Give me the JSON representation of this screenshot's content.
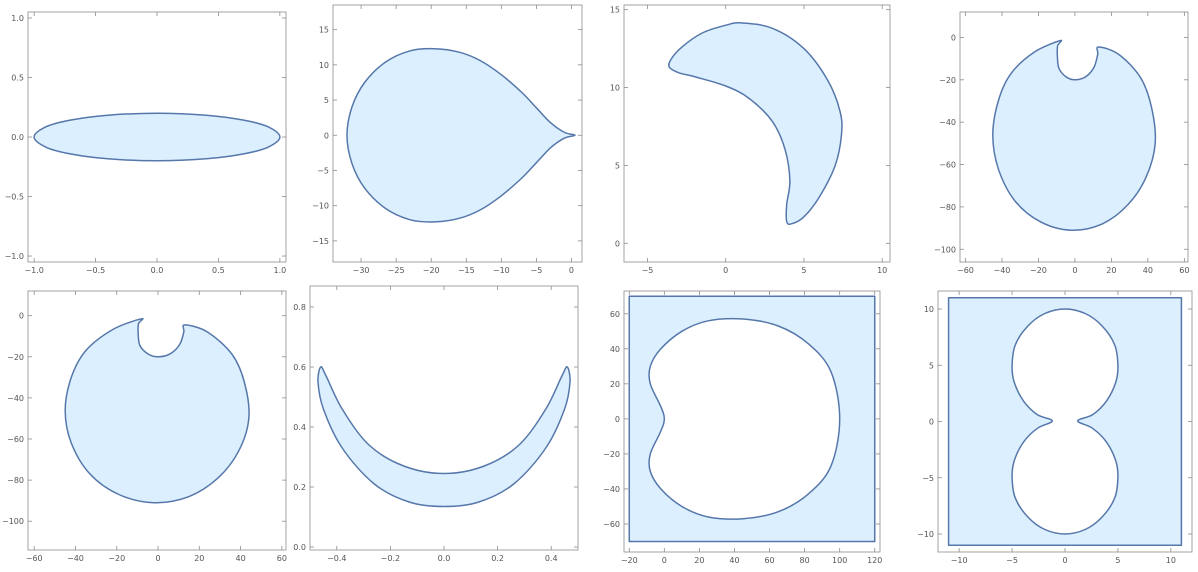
{
  "colors": {
    "fill": "#dcefff",
    "stroke": "#5577aa",
    "frame": "#8c8c8c",
    "text": "#555555"
  },
  "chart_data": [
    {
      "type": "area",
      "shape": "thin-ellipse",
      "xlim": [
        -1.05,
        1.05
      ],
      "ylim": [
        -1.05,
        1.05
      ],
      "xticks": [
        -1.0,
        -0.5,
        0.0,
        0.5,
        1.0
      ],
      "xtick_labels": [
        "−1.0",
        "−0.5",
        "0.0",
        "0.5",
        "1.0"
      ],
      "yticks": [
        -1.0,
        -0.5,
        0.0,
        0.5,
        1.0
      ],
      "ytick_labels": [
        "−1.0",
        "−0.5",
        "0.0",
        "0.5",
        "1.0"
      ],
      "outline": [
        [
          -1,
          0
        ],
        [
          -0.9,
          0.087
        ],
        [
          -0.7,
          0.143
        ],
        [
          -0.4,
          0.183
        ],
        [
          0,
          0.2
        ],
        [
          0.4,
          0.183
        ],
        [
          0.7,
          0.143
        ],
        [
          0.9,
          0.087
        ],
        [
          1,
          0
        ],
        [
          0.9,
          -0.087
        ],
        [
          0.7,
          -0.143
        ],
        [
          0.4,
          -0.183
        ],
        [
          0,
          -0.2
        ],
        [
          -0.4,
          -0.183
        ],
        [
          -0.7,
          -0.143
        ],
        [
          -0.9,
          -0.087
        ]
      ],
      "holes": []
    },
    {
      "type": "area",
      "shape": "teardrop",
      "xlim": [
        -34,
        1.5
      ],
      "ylim": [
        -18,
        18.5
      ],
      "xticks": [
        -30,
        -25,
        -20,
        -15,
        -10,
        -5,
        0
      ],
      "xtick_labels": [
        "−30",
        "−25",
        "−20",
        "−15",
        "−10",
        "−5",
        "0"
      ],
      "yticks": [
        -15,
        -10,
        -5,
        0,
        5,
        10,
        15
      ],
      "ytick_labels": [
        "−15",
        "−10",
        "−5",
        "0",
        "5",
        "10",
        "15"
      ],
      "outline": [
        [
          0.5,
          0
        ],
        [
          -1,
          0.4
        ],
        [
          -3,
          1.8
        ],
        [
          -5,
          3.9
        ],
        [
          -7,
          6
        ],
        [
          -10,
          8.6
        ],
        [
          -13,
          10.6
        ],
        [
          -16,
          11.8
        ],
        [
          -19.5,
          12.3
        ],
        [
          -23,
          12
        ],
        [
          -26.5,
          10.4
        ],
        [
          -29.5,
          7.5
        ],
        [
          -31.3,
          4
        ],
        [
          -32,
          0
        ],
        [
          -31.3,
          -4
        ],
        [
          -29.5,
          -7.5
        ],
        [
          -26.5,
          -10.4
        ],
        [
          -23,
          -12
        ],
        [
          -19.5,
          -12.3
        ],
        [
          -16,
          -11.8
        ],
        [
          -13,
          -10.6
        ],
        [
          -10,
          -8.6
        ],
        [
          -7,
          -6
        ],
        [
          -5,
          -3.9
        ],
        [
          -3,
          -1.8
        ],
        [
          -1,
          -0.4
        ]
      ],
      "holes": []
    },
    {
      "type": "area",
      "shape": "crescent-hook",
      "xlim": [
        -6.5,
        10.5
      ],
      "ylim": [
        -1.2,
        15.3
      ],
      "xticks": [
        -5,
        0,
        5,
        10
      ],
      "xtick_labels": [
        "−5",
        "0",
        "5",
        "10"
      ],
      "yticks": [
        0,
        5,
        10,
        15
      ],
      "ytick_labels": [
        "0",
        "5",
        "10",
        "15"
      ],
      "outline": [
        [
          -3.6,
          11.3
        ],
        [
          -3.5,
          11.8
        ],
        [
          -2.8,
          12.6
        ],
        [
          -1.5,
          13.5
        ],
        [
          0,
          14
        ],
        [
          1,
          14.15
        ],
        [
          3,
          13.8
        ],
        [
          5,
          12.5
        ],
        [
          6.5,
          10.5
        ],
        [
          7.3,
          8.5
        ],
        [
          7.4,
          7
        ],
        [
          7,
          5
        ],
        [
          6,
          3
        ],
        [
          5,
          1.7
        ],
        [
          4.2,
          1.25
        ],
        [
          3.9,
          1.4
        ],
        [
          3.9,
          2.5
        ],
        [
          4.1,
          4
        ],
        [
          3.8,
          6
        ],
        [
          3,
          7.8
        ],
        [
          1.5,
          9.3
        ],
        [
          0,
          10.1
        ],
        [
          -2,
          10.7
        ],
        [
          -3,
          10.95
        ]
      ],
      "holes": []
    },
    {
      "type": "area",
      "shape": "disk-with-notch",
      "xlim": [
        -63,
        62
      ],
      "ylim": [
        -106,
        12
      ],
      "xticks": [
        -60,
        -40,
        -20,
        0,
        20,
        40,
        60
      ],
      "xtick_labels": [
        "−60",
        "−40",
        "−20",
        "0",
        "20",
        "40",
        "60"
      ],
      "yticks": [
        -100,
        -80,
        -60,
        -40,
        -20,
        0
      ],
      "ytick_labels": [
        "−100",
        "−80",
        "−60",
        "−40",
        "−20",
        "0"
      ],
      "outline": [
        [
          -8,
          -1.5
        ],
        [
          -22,
          -6.8
        ],
        [
          -35,
          -17
        ],
        [
          -42,
          -30
        ],
        [
          -45,
          -46
        ],
        [
          -42,
          -62
        ],
        [
          -33,
          -77
        ],
        [
          -19,
          -87
        ],
        [
          -2,
          -91
        ],
        [
          15,
          -88
        ],
        [
          29,
          -79
        ],
        [
          39,
          -66
        ],
        [
          44,
          -50
        ],
        [
          42,
          -33
        ],
        [
          36,
          -19
        ],
        [
          24,
          -8
        ],
        [
          13,
          -4.5
        ],
        [
          12.5,
          -8
        ],
        [
          10.5,
          -14
        ],
        [
          6,
          -18.5
        ],
        [
          0,
          -20
        ],
        [
          -5,
          -18.5
        ],
        [
          -8.8,
          -14.5
        ],
        [
          -9.6,
          -9
        ],
        [
          -9.5,
          -4
        ]
      ],
      "holes": []
    },
    {
      "type": "area",
      "shape": "disk-with-notch",
      "xlim": [
        -63,
        62
      ],
      "ylim": [
        -114,
        12
      ],
      "xticks": [
        -60,
        -40,
        -20,
        0,
        20,
        40,
        60
      ],
      "xtick_labels": [
        "−60",
        "−40",
        "−20",
        "0",
        "20",
        "40",
        "60"
      ],
      "yticks": [
        -100,
        -80,
        -60,
        -40,
        -20,
        0
      ],
      "ytick_labels": [
        "−100",
        "−80",
        "−60",
        "−40",
        "−20",
        "0"
      ],
      "outline": [
        [
          -8,
          -1.5
        ],
        [
          -22,
          -6.8
        ],
        [
          -35,
          -17
        ],
        [
          -42,
          -30
        ],
        [
          -45,
          -46
        ],
        [
          -42,
          -62
        ],
        [
          -33,
          -77
        ],
        [
          -19,
          -87
        ],
        [
          -2,
          -91
        ],
        [
          15,
          -88
        ],
        [
          29,
          -79
        ],
        [
          39,
          -66
        ],
        [
          44,
          -50
        ],
        [
          42,
          -33
        ],
        [
          36,
          -19
        ],
        [
          24,
          -8
        ],
        [
          13,
          -4.5
        ],
        [
          12.5,
          -8
        ],
        [
          10.5,
          -14
        ],
        [
          6,
          -18.5
        ],
        [
          0,
          -20
        ],
        [
          -5,
          -18.5
        ],
        [
          -8.8,
          -14.5
        ],
        [
          -9.6,
          -9
        ],
        [
          -9.5,
          -4
        ]
      ],
      "holes": []
    },
    {
      "type": "area",
      "shape": "crescent",
      "xlim": [
        -0.5,
        0.5
      ],
      "ylim": [
        -0.01,
        0.87
      ],
      "xticks": [
        -0.4,
        -0.2,
        0.0,
        0.2,
        0.4
      ],
      "xtick_labels": [
        "−0.4",
        "−0.2",
        "0.0",
        "0.2",
        "0.4"
      ],
      "yticks": [
        0.0,
        0.2,
        0.4,
        0.6,
        0.8
      ],
      "ytick_labels": [
        "0.0",
        "0.2",
        "0.4",
        "0.6",
        "0.8"
      ],
      "outline": [
        [
          -0.46,
          0.6
        ],
        [
          -0.44,
          0.57
        ],
        [
          -0.38,
          0.46
        ],
        [
          -0.28,
          0.34
        ],
        [
          -0.15,
          0.27
        ],
        [
          0,
          0.245
        ],
        [
          0.15,
          0.27
        ],
        [
          0.28,
          0.34
        ],
        [
          0.38,
          0.46
        ],
        [
          0.44,
          0.57
        ],
        [
          0.46,
          0.6
        ],
        [
          0.47,
          0.55
        ],
        [
          0.45,
          0.46
        ],
        [
          0.38,
          0.33
        ],
        [
          0.26,
          0.21
        ],
        [
          0.13,
          0.15
        ],
        [
          0,
          0.135
        ],
        [
          -0.13,
          0.15
        ],
        [
          -0.26,
          0.21
        ],
        [
          -0.38,
          0.33
        ],
        [
          -0.45,
          0.46
        ],
        [
          -0.47,
          0.55
        ]
      ],
      "holes": []
    },
    {
      "type": "area",
      "shape": "square-with-cardioid-hole",
      "xlim": [
        -23,
        123
      ],
      "ylim": [
        -76,
        73
      ],
      "xticks": [
        -20,
        0,
        20,
        40,
        60,
        80,
        100,
        120
      ],
      "xtick_labels": [
        "−20",
        "0",
        "20",
        "40",
        "60",
        "80",
        "100",
        "120"
      ],
      "yticks": [
        -60,
        -40,
        -20,
        0,
        20,
        40,
        60
      ],
      "ytick_labels": [
        "−60",
        "−40",
        "−20",
        "0",
        "20",
        "40",
        "60"
      ],
      "outline": [
        [
          -20,
          -70
        ],
        [
          120,
          -70
        ],
        [
          120,
          70
        ],
        [
          -20,
          70
        ]
      ],
      "holes": [
        [
          [
            0,
            0
          ],
          [
            -2,
            7
          ],
          [
            -8,
            20
          ],
          [
            -8,
            30
          ],
          [
            -2,
            40
          ],
          [
            10,
            50
          ],
          [
            25,
            56
          ],
          [
            45,
            57
          ],
          [
            65,
            53
          ],
          [
            82,
            43
          ],
          [
            95,
            27
          ],
          [
            100,
            0
          ],
          [
            95,
            -27
          ],
          [
            82,
            -43
          ],
          [
            65,
            -53
          ],
          [
            45,
            -57
          ],
          [
            25,
            -56
          ],
          [
            10,
            -50
          ],
          [
            -2,
            -40
          ],
          [
            -8,
            -30
          ],
          [
            -8,
            -20
          ],
          [
            -2,
            -7
          ]
        ]
      ]
    },
    {
      "type": "area",
      "shape": "square-with-figure-eight-hole",
      "xlim": [
        -12,
        12
      ],
      "ylim": [
        -11.6,
        11.6
      ],
      "xticks": [
        -10,
        -5,
        0,
        5,
        10
      ],
      "xtick_labels": [
        "−10",
        "−5",
        "0",
        "5",
        "10"
      ],
      "yticks": [
        -10,
        -5,
        0,
        5,
        10
      ],
      "ytick_labels": [
        "−10",
        "−5",
        "0",
        "5",
        "10"
      ],
      "outline": [
        [
          -11,
          -11
        ],
        [
          11,
          -11
        ],
        [
          11,
          11
        ],
        [
          -11,
          11
        ]
      ],
      "holes": [
        [
          [
            -1.2,
            0.05
          ],
          [
            -2.6,
            0.6
          ],
          [
            -3.9,
            1.8
          ],
          [
            -4.8,
            3.5
          ],
          [
            -5,
            5
          ],
          [
            -4.7,
            6.8
          ],
          [
            -3.5,
            8.5
          ],
          [
            -1.9,
            9.6
          ],
          [
            0,
            10
          ],
          [
            1.9,
            9.6
          ],
          [
            3.5,
            8.5
          ],
          [
            4.7,
            6.8
          ],
          [
            5,
            5
          ],
          [
            4.8,
            3.5
          ],
          [
            3.9,
            1.8
          ],
          [
            2.6,
            0.6
          ],
          [
            1.2,
            0.05
          ],
          [
            2.6,
            -0.6
          ],
          [
            3.9,
            -1.8
          ],
          [
            4.8,
            -3.5
          ],
          [
            5,
            -5
          ],
          [
            4.7,
            -6.8
          ],
          [
            3.5,
            -8.5
          ],
          [
            1.9,
            -9.6
          ],
          [
            0,
            -10
          ],
          [
            -1.9,
            -9.6
          ],
          [
            -3.5,
            -8.5
          ],
          [
            -4.7,
            -6.8
          ],
          [
            -5,
            -5
          ],
          [
            -4.8,
            -3.5
          ],
          [
            -3.9,
            -1.8
          ],
          [
            -2.6,
            -0.6
          ]
        ]
      ]
    }
  ]
}
